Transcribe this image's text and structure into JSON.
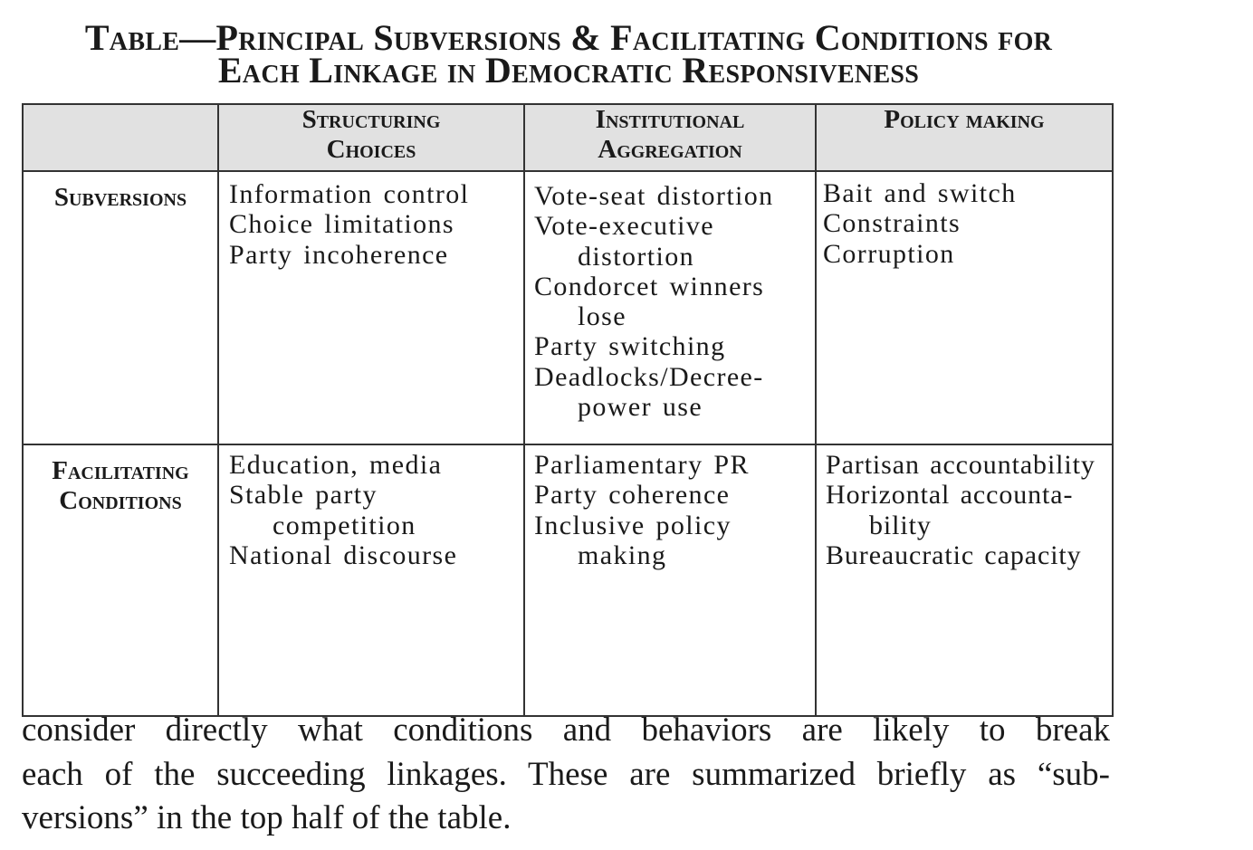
{
  "title": {
    "line1": "Table—Principal Subversions & Facilitating Conditions for",
    "line2": "Each Linkage in Democratic Responsiveness"
  },
  "table": {
    "columns": [
      {
        "line1": "Structuring",
        "line2": "Choices"
      },
      {
        "line1": "Institutional",
        "line2": "Aggregation"
      },
      {
        "line1": "Policy making",
        "line2": ""
      }
    ],
    "rows": [
      {
        "header": {
          "line1": "Subversions",
          "line2": ""
        },
        "cells": [
          [
            "Information control",
            "Choice limitations",
            "Party incoherence"
          ],
          [
            "Vote-seat distortion",
            "Vote-executive distortion",
            "Condorcet winners lose",
            "Party switching",
            "Deadlocks/Decree-power use"
          ],
          [
            "Bait and switch",
            "Constraints",
            "Corruption"
          ]
        ]
      },
      {
        "header": {
          "line1": "Facilitating",
          "line2": "Conditions"
        },
        "cells": [
          [
            "Education, media",
            "Stable party competition",
            "National discourse"
          ],
          [
            "Parliamentary PR",
            "Party coherence",
            "Inclusive policy making"
          ],
          [
            "Partisan accountability",
            "Horizontal accounta-bility",
            "Bureaucratic capacity"
          ]
        ]
      }
    ]
  },
  "paragraph": {
    "line1": "consider directly what conditions and behaviors are likely to break",
    "line2": "each of the succeeding linkages. These are summarized briefly as “sub-",
    "line3": "versions” in the top half of the table."
  }
}
